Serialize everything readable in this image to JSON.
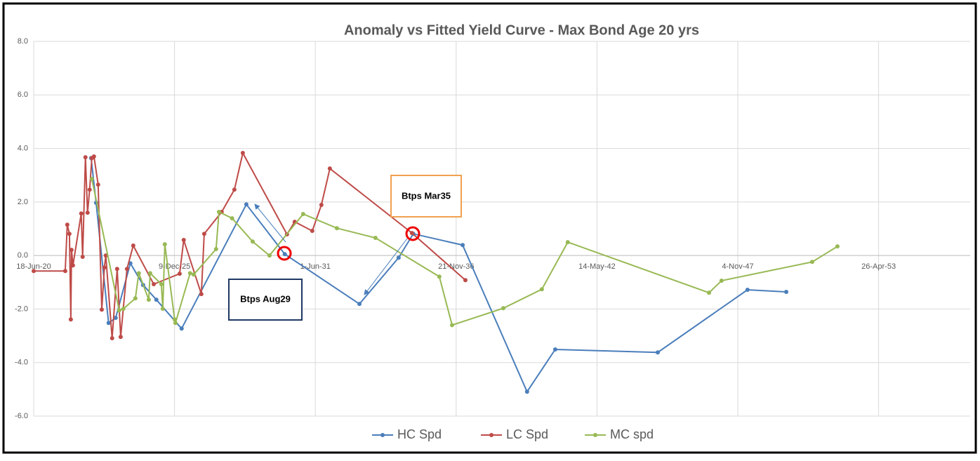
{
  "chart_data": {
    "type": "line",
    "title": "Anomaly vs Fitted Yield Curve - Max Bond Age 20 yrs",
    "xlim": [
      "2020-06-18",
      "2056-11-16"
    ],
    "xticks": [
      {
        "value": "2020-06-18",
        "label": "18-Jun-20"
      },
      {
        "value": "2025-12-09",
        "label": "9-Dec-25"
      },
      {
        "value": "2031-06-01",
        "label": "1-Jun-31"
      },
      {
        "value": "2036-11-21",
        "label": "21-Nov-36"
      },
      {
        "value": "2042-05-14",
        "label": "14-May-42"
      },
      {
        "value": "2047-11-04",
        "label": "4-Nov-47"
      },
      {
        "value": "2053-04-26",
        "label": "26-Apr-53"
      }
    ],
    "ylim": [
      -6,
      8
    ],
    "yticks": [
      {
        "value": -6,
        "label": "-6.0"
      },
      {
        "value": -4,
        "label": "-4.0"
      },
      {
        "value": -2,
        "label": "-2.0"
      },
      {
        "value": 0,
        "label": "0.0"
      },
      {
        "value": 2,
        "label": "2.0"
      },
      {
        "value": 4,
        "label": "4.0"
      },
      {
        "value": 6,
        "label": "6.0"
      },
      {
        "value": 8,
        "label": "8.0"
      }
    ],
    "grid": true,
    "legend": "bottom",
    "annotations": [
      "Btps Aug29",
      "Btps Mar35"
    ],
    "series": [
      {
        "name": "HC Spd",
        "color": "#4a7ebb",
        "x": [
          "2022-09-12",
          "2022-11-21",
          "2023-05-18",
          "2023-08-26",
          "2024-03-22",
          "2024-09-19",
          "2025-03-26",
          "2026-03-20",
          "2028-09-24",
          "2030-03-24",
          "2033-02-16",
          "2034-08-27",
          "2035-03-23",
          "2037-02-21",
          "2039-08-25",
          "2040-09-28",
          "2044-09-23",
          "2048-03-21",
          "2049-09-22"
        ],
        "values": [
          3.64,
          1.97,
          -2.52,
          -2.33,
          -0.29,
          -1.1,
          -1.65,
          -2.73,
          1.91,
          0.05,
          -1.81,
          -0.08,
          0.81,
          0.39,
          -5.09,
          -3.51,
          -3.62,
          -1.28,
          -1.36
        ]
      },
      {
        "name": "LC Spd",
        "color": "#be4b48",
        "x": [
          "2020-06-18",
          "2021-09-09",
          "2021-10-08",
          "2021-11-07",
          "2021-11-27",
          "2021-12-07",
          "2021-12-27",
          "2022-04-24",
          "2022-05-14",
          "2022-06-23",
          "2022-07-23",
          "2022-08-22",
          "2022-09-22",
          "2022-10-22",
          "2022-12-20",
          "2023-02-10",
          "2023-03-19",
          "2023-04-08",
          "2023-07-07",
          "2023-09-16",
          "2023-11-05",
          "2024-02-03",
          "2024-05-02",
          "2025-02-17",
          "2026-02-20",
          "2026-04-19",
          "2026-12-25",
          "2027-02-04",
          "2027-10-10",
          "2028-04-07",
          "2028-08-05",
          "2030-04-24",
          "2030-08-12",
          "2031-04-18",
          "2031-08-26",
          "2031-12-24",
          "2035-03-04",
          "2037-04-01"
        ],
        "values": [
          -0.58,
          -0.58,
          1.15,
          0.81,
          -2.39,
          0.21,
          -0.37,
          1.57,
          -0.05,
          3.67,
          1.6,
          2.46,
          3.64,
          3.7,
          2.65,
          -2.02,
          -0.45,
          0.0,
          -3.09,
          -0.5,
          -3.04,
          -0.5,
          0.37,
          -1.07,
          -0.68,
          0.58,
          -1.44,
          0.81,
          1.63,
          2.46,
          3.83,
          0.79,
          1.26,
          0.92,
          1.89,
          3.25,
          0.84,
          -0.92
        ]
      },
      {
        "name": "MC spd",
        "color": "#98b954",
        "x": [
          "2022-09-22",
          "2023-10-15",
          "2023-12-14",
          "2024-06-01",
          "2024-07-20",
          "2024-12-08",
          "2024-12-28",
          "2025-06-05",
          "2025-06-25",
          "2025-07-24",
          "2025-12-11",
          "2025-12-22",
          "2026-07-18",
          "2026-09-08",
          "2027-07-22",
          "2027-09-01",
          "2028-03-06",
          "2028-12-23",
          "2029-08-19",
          "2030-12-10",
          "2032-04-02",
          "2033-10-02",
          "2036-03-27",
          "2036-09-24",
          "2038-09-21",
          "2040-03-22",
          "2041-03-25",
          "2046-09-21",
          "2047-03-18",
          "2050-09-25",
          "2051-09-19"
        ],
        "values": [
          2.86,
          -2.05,
          -1.99,
          -1.6,
          -0.66,
          -1.65,
          -0.66,
          -1.07,
          -1.99,
          0.42,
          -2.39,
          -2.52,
          -0.66,
          -0.71,
          0.24,
          1.63,
          1.39,
          0.52,
          0.0,
          1.55,
          1.02,
          0.66,
          -0.79,
          -2.6,
          -1.97,
          -1.26,
          0.5,
          -1.39,
          -0.94,
          -0.24,
          0.34
        ]
      }
    ]
  }
}
